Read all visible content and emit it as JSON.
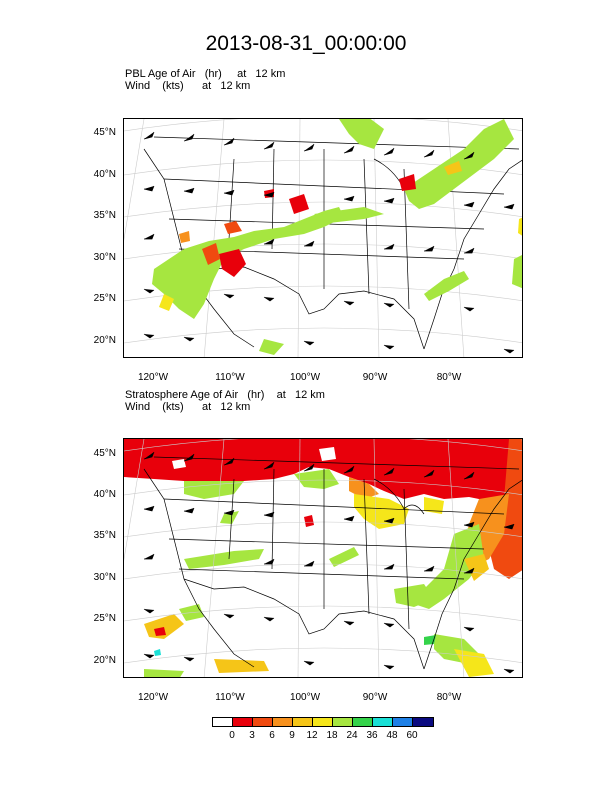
{
  "title": "2013-08-31_00:00:00",
  "panels": [
    {
      "line1": "PBL Age of Air   (hr)     at   12 km",
      "line2": "Wind    (kts)      at   12 km"
    },
    {
      "line1": "Stratosphere Age of Air   (hr)    at   12 km",
      "line2": "Wind    (kts)      at   12 km"
    }
  ],
  "lat_labels": [
    "45°N",
    "40°N",
    "35°N",
    "30°N",
    "25°N",
    "20°N"
  ],
  "lon_labels": [
    "120°W",
    "110°W",
    "100°W",
    "90°W",
    "80°W"
  ],
  "colorbar": {
    "labels": [
      "0",
      "3",
      "6",
      "9",
      "12",
      "18",
      "24",
      "36",
      "48",
      "60"
    ],
    "colors": [
      "#ffffff",
      "#e8000b",
      "#f04a10",
      "#f7911d",
      "#f5c518",
      "#f5e61a",
      "#a6e640",
      "#34d34a",
      "#19e0d6",
      "#1e80e6",
      "#0a0a80"
    ]
  }
}
